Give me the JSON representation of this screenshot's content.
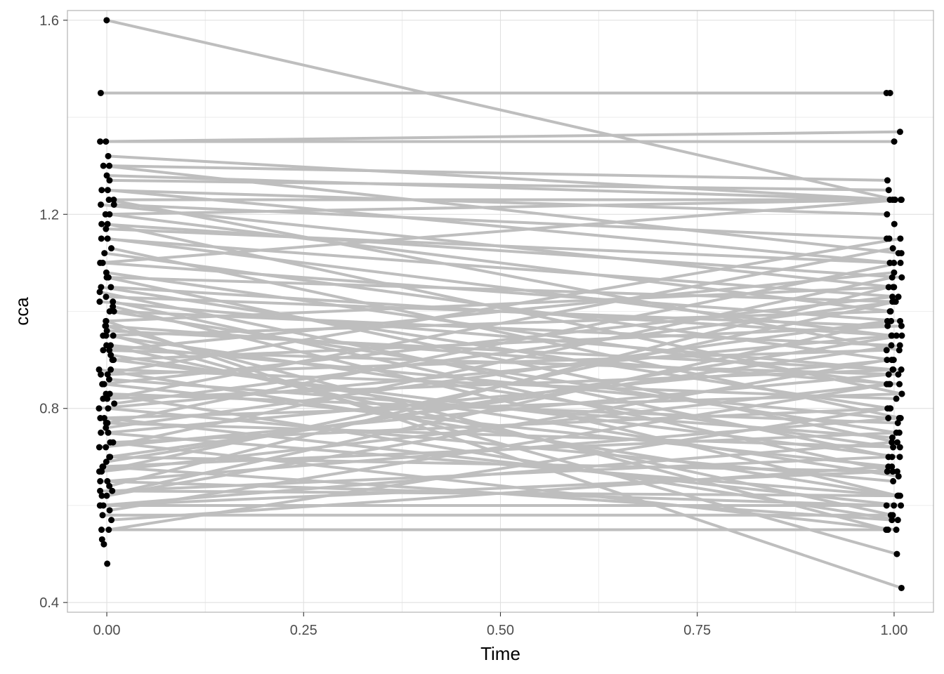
{
  "chart_data": {
    "type": "line",
    "title": "",
    "xlabel": "Time",
    "ylabel": "cca",
    "xlim": [
      -0.05,
      1.05
    ],
    "ylim": [
      0.38,
      1.62
    ],
    "x_ticks": [
      0.0,
      0.25,
      0.5,
      0.75,
      1.0
    ],
    "x_tick_labels": [
      "0.00",
      "0.25",
      "0.50",
      "0.75",
      "1.00"
    ],
    "y_ticks": [
      0.4,
      0.8,
      1.2,
      1.6
    ],
    "y_tick_labels": [
      "0.4",
      "0.8",
      "1.2",
      "1.6"
    ],
    "grid": true,
    "legend": "none",
    "line_color": "#bebebe",
    "point_color": "#000000",
    "panel_border_color": "#b3b3b3",
    "grid_color": "#e0e0e0",
    "series_pairs": [
      [
        1.6,
        1.23
      ],
      [
        1.45,
        1.45
      ],
      [
        1.35,
        1.35
      ],
      [
        1.35,
        1.37
      ],
      [
        1.32,
        1.23
      ],
      [
        1.3,
        1.12
      ],
      [
        1.3,
        1.27
      ],
      [
        1.28,
        1.23
      ],
      [
        1.27,
        1.25
      ],
      [
        1.25,
        1.1
      ],
      [
        1.25,
        1.2
      ],
      [
        1.23,
        1.23
      ],
      [
        1.22,
        1.05
      ],
      [
        1.22,
        1.15
      ],
      [
        1.2,
        1.23
      ],
      [
        1.2,
        1.0
      ],
      [
        1.18,
        1.07
      ],
      [
        1.17,
        1.1
      ],
      [
        1.15,
        0.95
      ],
      [
        1.15,
        1.03
      ],
      [
        1.12,
        0.9
      ],
      [
        1.1,
        1.23
      ],
      [
        1.1,
        0.98
      ],
      [
        1.08,
        0.85
      ],
      [
        1.07,
        1.02
      ],
      [
        1.05,
        0.95
      ],
      [
        1.05,
        0.8
      ],
      [
        1.03,
        0.97
      ],
      [
        1.02,
        0.88
      ],
      [
        1.0,
        0.75
      ],
      [
        1.0,
        0.93
      ],
      [
        0.98,
        1.05
      ],
      [
        0.97,
        0.85
      ],
      [
        0.95,
        0.72
      ],
      [
        0.95,
        1.0
      ],
      [
        0.93,
        0.78
      ],
      [
        0.92,
        0.87
      ],
      [
        0.9,
        0.97
      ],
      [
        0.9,
        0.7
      ],
      [
        0.88,
        0.82
      ],
      [
        0.87,
        0.92
      ],
      [
        0.85,
        0.68
      ],
      [
        0.85,
        1.03
      ],
      [
        0.83,
        0.77
      ],
      [
        0.82,
        0.88
      ],
      [
        0.8,
        0.95
      ],
      [
        0.8,
        0.65
      ],
      [
        0.78,
        0.83
      ],
      [
        0.77,
        0.72
      ],
      [
        0.75,
        0.9
      ],
      [
        0.75,
        0.62
      ],
      [
        0.73,
        0.8
      ],
      [
        0.72,
        0.87
      ],
      [
        0.7,
        0.67
      ],
      [
        0.7,
        0.93
      ],
      [
        0.68,
        0.75
      ],
      [
        0.67,
        0.85
      ],
      [
        0.65,
        0.6
      ],
      [
        0.65,
        0.78
      ],
      [
        0.63,
        0.7
      ],
      [
        0.62,
        0.9
      ],
      [
        0.6,
        0.6
      ],
      [
        0.6,
        0.73
      ],
      [
        0.58,
        0.58
      ],
      [
        0.57,
        0.68
      ],
      [
        0.55,
        0.55
      ],
      [
        0.55,
        0.8
      ],
      [
        0.97,
        0.55
      ],
      [
        0.93,
        0.58
      ],
      [
        0.88,
        0.62
      ],
      [
        0.83,
        0.57
      ],
      [
        0.78,
        0.6
      ],
      [
        0.73,
        0.55
      ],
      [
        0.68,
        0.57
      ],
      [
        0.63,
        0.62
      ],
      [
        0.6,
        0.67
      ],
      [
        0.62,
        0.98
      ],
      [
        0.67,
        1.02
      ],
      [
        0.72,
        1.07
      ],
      [
        0.77,
        1.1
      ],
      [
        0.82,
        1.13
      ],
      [
        0.87,
        1.15
      ],
      [
        0.92,
        1.08
      ],
      [
        0.95,
        0.5
      ],
      [
        0.98,
        0.43
      ],
      [
        1.02,
        0.67
      ],
      [
        1.07,
        0.73
      ],
      [
        1.13,
        0.78
      ],
      [
        1.18,
        0.83
      ],
      [
        1.23,
        0.92
      ],
      [
        0.76,
        0.98
      ],
      [
        0.81,
        1.02
      ],
      [
        0.86,
        0.74
      ],
      [
        0.91,
        0.66
      ],
      [
        0.96,
        0.88
      ],
      [
        1.01,
        0.62
      ],
      [
        1.04,
        0.7
      ],
      [
        0.69,
        0.95
      ],
      [
        0.64,
        1.05
      ],
      [
        0.59,
        0.85
      ]
    ],
    "extra_points_t0": [
      0.53,
      0.48,
      0.52
    ],
    "extra_points_t1": [
      1.45,
      1.12,
      1.18,
      1.15
    ]
  }
}
